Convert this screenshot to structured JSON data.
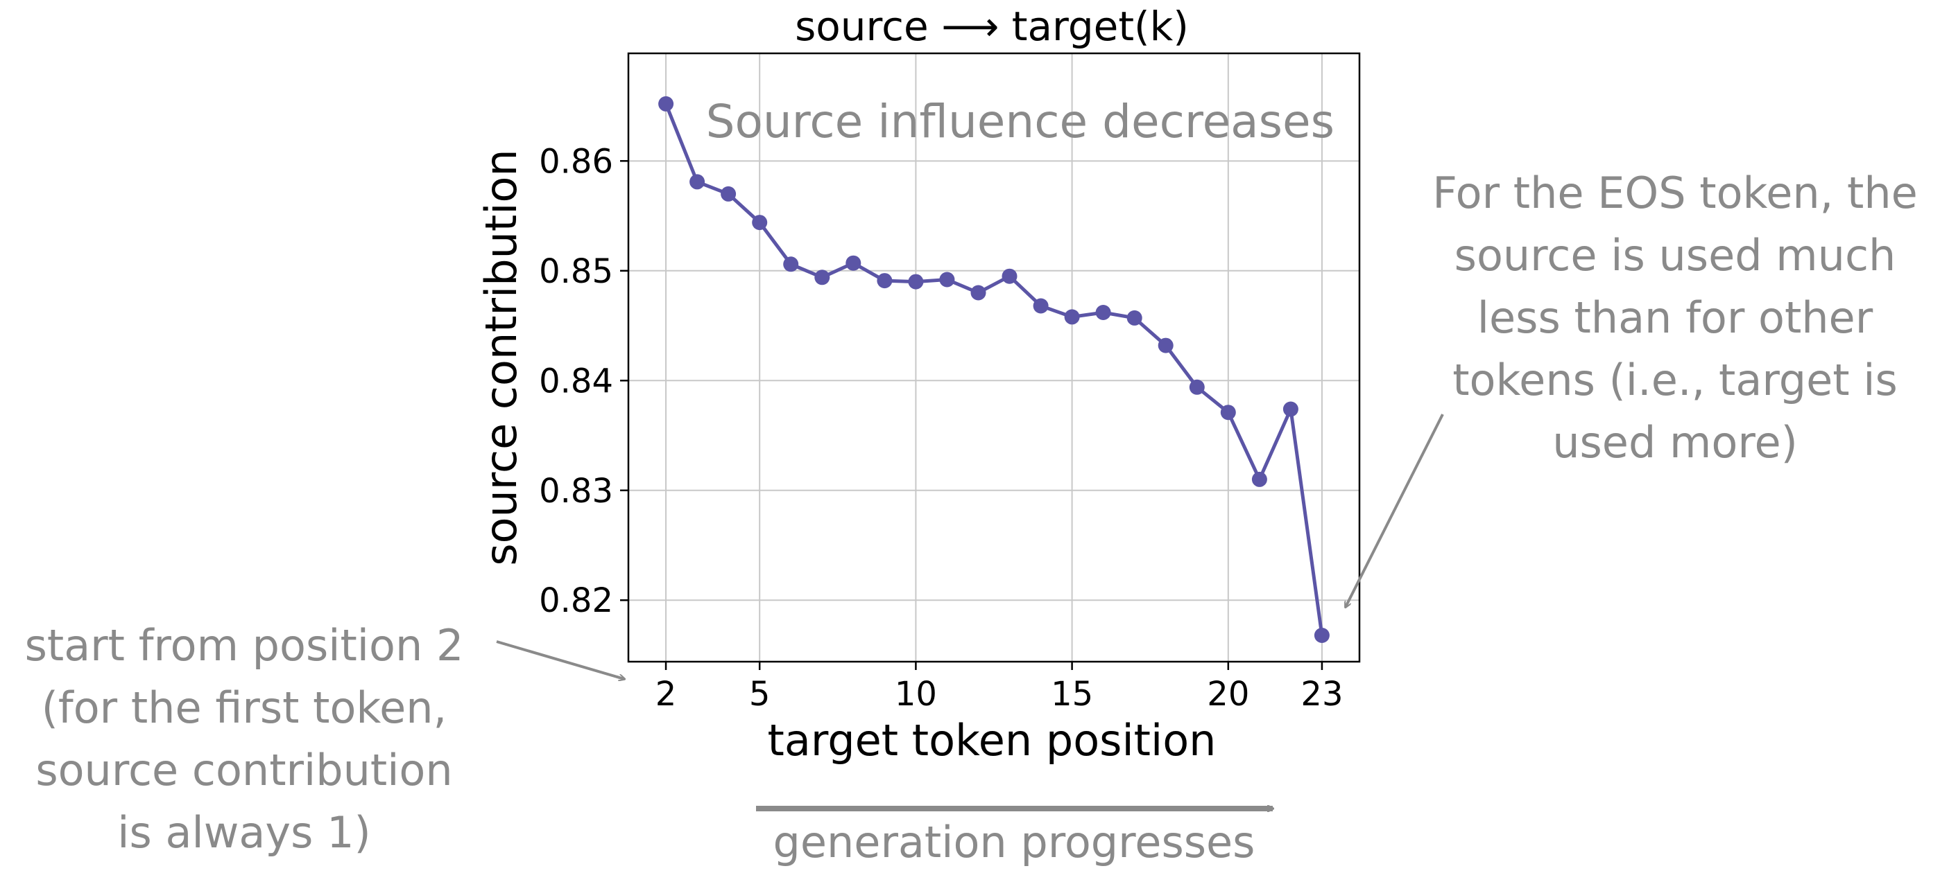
{
  "chart_data": {
    "type": "line",
    "title": "source ⟶ target(k)",
    "xlabel": "target token position",
    "ylabel": "source contribution",
    "xlim": [
      0.8,
      24.2
    ],
    "ylim": [
      0.8144,
      0.8698
    ],
    "xticks": [
      2,
      5,
      10,
      15,
      20,
      23
    ],
    "yticks": [
      0.82,
      0.83,
      0.84,
      0.85,
      0.86
    ],
    "ytick_labels": [
      "0.82",
      "0.83",
      "0.84",
      "0.85",
      "0.86"
    ],
    "grid": true,
    "color": "#5b55a6",
    "x": [
      2,
      3,
      4,
      5,
      6,
      7,
      8,
      9,
      10,
      11,
      12,
      13,
      14,
      15,
      16,
      17,
      18,
      19,
      20,
      21,
      22,
      23
    ],
    "y": [
      0.8652,
      0.8581,
      0.857,
      0.8544,
      0.8506,
      0.8494,
      0.8507,
      0.8491,
      0.849,
      0.8492,
      0.848,
      0.8495,
      0.8468,
      0.8458,
      0.8462,
      0.8457,
      0.8432,
      0.8394,
      0.8371,
      0.831,
      0.8374,
      0.8168
    ],
    "annotations": {
      "inside": "Source influence decreases",
      "eos": [
        "For the EOS token, the",
        "source is used much",
        "less than for other",
        "tokens (i.e., target is",
        "used  more)"
      ],
      "start": [
        "start from position 2",
        "(for the first token,",
        "source contribution",
        "is always 1)"
      ],
      "generation": "generation progresses"
    }
  }
}
